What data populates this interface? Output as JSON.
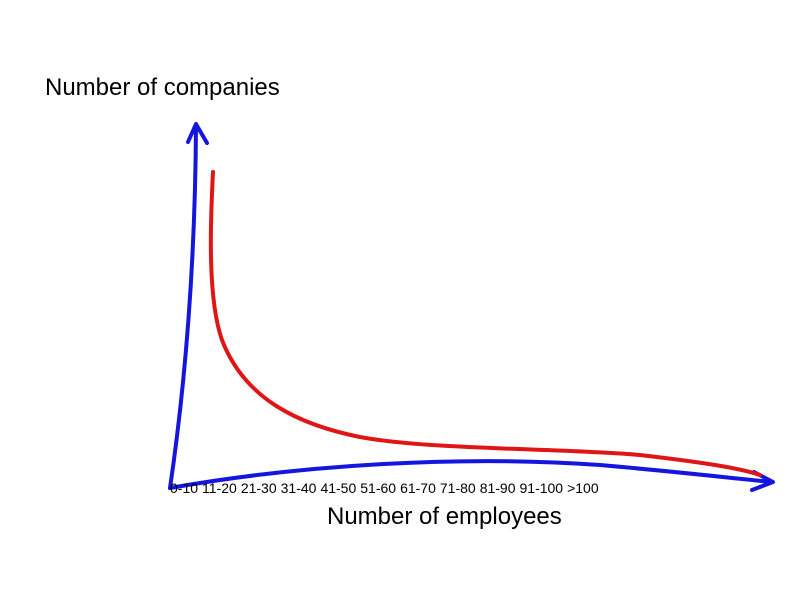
{
  "diagram": {
    "y_axis_label": "Number of companies",
    "x_axis_label": "Number of employees",
    "categories": [
      "0-10",
      "11-20",
      "21-30",
      "31-40",
      "41-50",
      "51-60",
      "61-70",
      "71-80",
      "81-90",
      "91-100",
      ">100"
    ]
  }
}
